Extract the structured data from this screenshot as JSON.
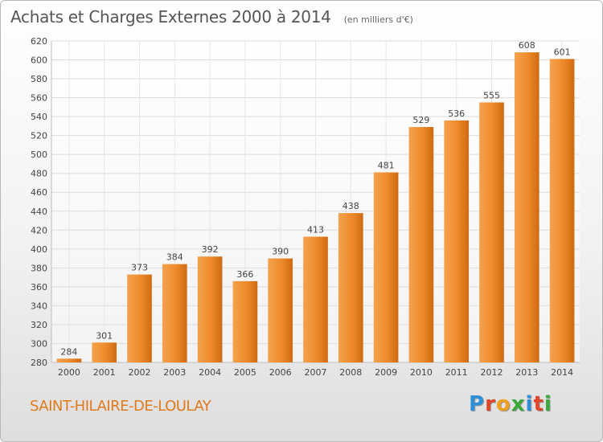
{
  "header": {
    "title": "Achats et Charges Externes 2000 à 2014",
    "subtitle": "(en milliers d'€)"
  },
  "footer": {
    "commune": "SAINT-HILAIRE-DE-LOULAY",
    "logo_letters": [
      "P",
      "r",
      "o",
      "x",
      "i",
      "t",
      "i"
    ],
    "logo_colors": [
      "#2f8fd8",
      "#e2462a",
      "#f0a020",
      "#3aa83a",
      "#2f8fd8",
      "#e2462a",
      "#3aa83a"
    ]
  },
  "chart_data": {
    "type": "bar",
    "categories": [
      "2000",
      "2001",
      "2002",
      "2003",
      "2004",
      "2005",
      "2006",
      "2007",
      "2008",
      "2009",
      "2010",
      "2011",
      "2012",
      "2013",
      "2014"
    ],
    "values": [
      284,
      301,
      373,
      384,
      392,
      366,
      390,
      413,
      438,
      481,
      529,
      536,
      555,
      608,
      601
    ],
    "ylim": [
      280,
      620
    ],
    "yticks": [
      280,
      300,
      320,
      340,
      360,
      380,
      400,
      420,
      440,
      460,
      480,
      500,
      520,
      540,
      560,
      580,
      600,
      620
    ],
    "grid": true,
    "bar_color": "#ee8a2a",
    "data_labels": true
  }
}
